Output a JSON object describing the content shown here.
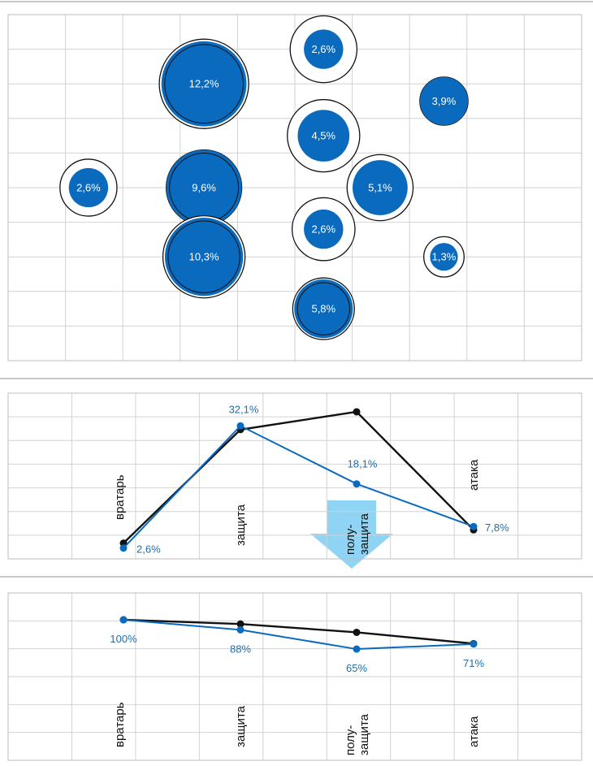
{
  "colors": {
    "blue": "#0a6abd",
    "black": "#111111",
    "label_blue": "#1f6fa8",
    "arrow": "#8fd3f5"
  },
  "chart_data": [
    {
      "type": "bubble",
      "title": "",
      "grid_cols": 10,
      "grid_rows": 10,
      "bubbles": [
        {
          "label": "2,6%",
          "col": 1,
          "row": 5,
          "value": 2.6,
          "ring": 1.45
        },
        {
          "label": "12,2%",
          "col": 3,
          "row": 2,
          "value": 12.2,
          "ring": 1.05
        },
        {
          "label": "9,6%",
          "col": 3,
          "row": 5,
          "value": 9.6,
          "ring": 1.0
        },
        {
          "label": "10,3%",
          "col": 3,
          "row": 7,
          "value": 10.3,
          "ring": 1.05
        },
        {
          "label": "2,6%",
          "col": 5,
          "row": 1,
          "value": 2.6,
          "ring": 1.7
        },
        {
          "label": "4,5%",
          "col": 5,
          "row": 3.5,
          "value": 4.5,
          "ring": 1.4
        },
        {
          "label": "2,6%",
          "col": 5,
          "row": 6.2,
          "value": 2.6,
          "ring": 1.6
        },
        {
          "label": "5,8%",
          "col": 5,
          "row": 8.5,
          "value": 5.8,
          "ring": 1.05
        },
        {
          "label": "5,1%",
          "col": 6,
          "row": 5,
          "value": 5.1,
          "ring": 1.2
        },
        {
          "label": "3,9%",
          "col": 7,
          "row": 2.5,
          "value": 3.9,
          "ring": 1.0
        },
        {
          "label": "1,3%",
          "col": 7,
          "row": 7,
          "value": 1.3,
          "ring": 1.45
        }
      ]
    },
    {
      "type": "line",
      "categories": [
        "вратарь",
        "защита",
        "полу-\nзащита",
        "атака"
      ],
      "ylim": [
        0,
        40
      ],
      "series": [
        {
          "name": "black",
          "values": [
            3.8,
            31.2,
            35.5,
            7.0
          ],
          "labels": []
        },
        {
          "name": "blue",
          "values": [
            2.6,
            32.1,
            18.1,
            7.8
          ],
          "labels": [
            "2,6%",
            "32,1%",
            "18,1%",
            "7,8%"
          ]
        }
      ],
      "annotation": "down-arrow"
    },
    {
      "type": "line",
      "categories": [
        "вратарь",
        "защита",
        "полу-\nзащита",
        "атака"
      ],
      "ylim": [
        0,
        100
      ],
      "series": [
        {
          "name": "black",
          "values": [
            100,
            95,
            85,
            71.5
          ],
          "labels": []
        },
        {
          "name": "blue",
          "values": [
            100,
            88,
            65,
            71
          ],
          "labels": [
            "100%",
            "88%",
            "65%",
            "71%"
          ]
        }
      ]
    }
  ]
}
